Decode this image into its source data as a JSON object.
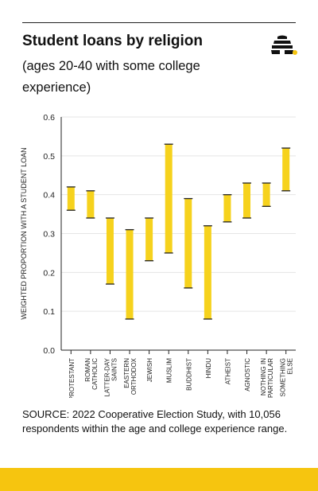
{
  "header": {
    "title": "Student loans by religion",
    "subtitle": "(ages 20-40 with some college experience)"
  },
  "logo": {
    "icon": "beehive-icon"
  },
  "colors": {
    "accent": "#f6c50f",
    "bar": "#f6d21d",
    "cap": "#222222",
    "grid": "#e5e5e5"
  },
  "chart_data": {
    "type": "range-bar",
    "title": "",
    "xlabel": "",
    "ylabel": "WEIGHTED PROPORTION WITH A STUDENT LOAN",
    "ylim": [
      0,
      0.6
    ],
    "yticks": [
      "0.0",
      "0.1",
      "0.2",
      "0.3",
      "0.4",
      "0.5",
      "0.6"
    ],
    "grid": true,
    "categories": [
      [
        "PROTESTANT"
      ],
      [
        "ROMAN",
        "CATHOLIC"
      ],
      [
        "LATTER-DAY",
        "SAINTS"
      ],
      [
        "EASTERN",
        "ORTHODOX"
      ],
      [
        "JEWISH"
      ],
      [
        "MUSLIM"
      ],
      [
        "BUDDHIST"
      ],
      [
        "HINDU"
      ],
      [
        "ATHEIST"
      ],
      [
        "AGNOSTIC"
      ],
      [
        "NOTHING IN",
        "PARTICULAR"
      ],
      [
        "SOMETHING",
        "ELSE"
      ]
    ],
    "low": [
      0.36,
      0.34,
      0.17,
      0.08,
      0.23,
      0.25,
      0.16,
      0.08,
      0.33,
      0.34,
      0.37,
      0.41
    ],
    "high": [
      0.42,
      0.41,
      0.34,
      0.31,
      0.34,
      0.53,
      0.39,
      0.32,
      0.4,
      0.43,
      0.43,
      0.52
    ]
  },
  "source": "SOURCE: 2022 Cooperative Election Study, with 10,056 respondents within the age and college experience range."
}
